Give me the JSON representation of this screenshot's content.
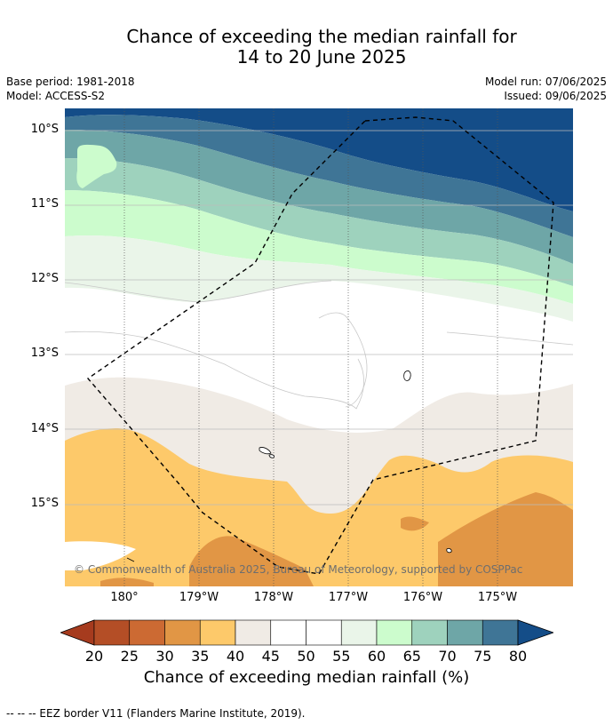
{
  "title_line1": "Chance of exceeding the median rainfall for",
  "title_line2": "14 to 20 June 2025",
  "base_period": "Base period: 1981-2018",
  "model": "Model: ACCESS-S2",
  "model_run": "Model run: 07/06/2025",
  "issued": "Issued: 09/06/2025",
  "copyright": "© Commonwealth of Australia 2025, Bureau of Meteorology, supported by COSPPac",
  "lat_labels": [
    "10°S",
    "11°S",
    "12°S",
    "13°S",
    "14°S",
    "15°S"
  ],
  "lon_labels": [
    "180°",
    "179°W",
    "178°W",
    "177°W",
    "176°W",
    "175°W"
  ],
  "colorbar": {
    "ticks": [
      "20",
      "25",
      "30",
      "35",
      "40",
      "45",
      "50",
      "55",
      "60",
      "65",
      "70",
      "75",
      "80"
    ],
    "colors": [
      "#a63b1e",
      "#b44e26",
      "#cc6a33",
      "#e19645",
      "#fdc96a",
      "#f0ebe5",
      "#ffffff",
      "#ffffff",
      "#eaf5e9",
      "#ccfccd",
      "#9ed2bd",
      "#6ea6a7",
      "#3f7596",
      "#144d88"
    ],
    "label": "Chance of exceeding median rainfall (%)"
  },
  "footer": "--  --  -- EEZ border V11 (Flanders Marine Institute, 2019)."
}
